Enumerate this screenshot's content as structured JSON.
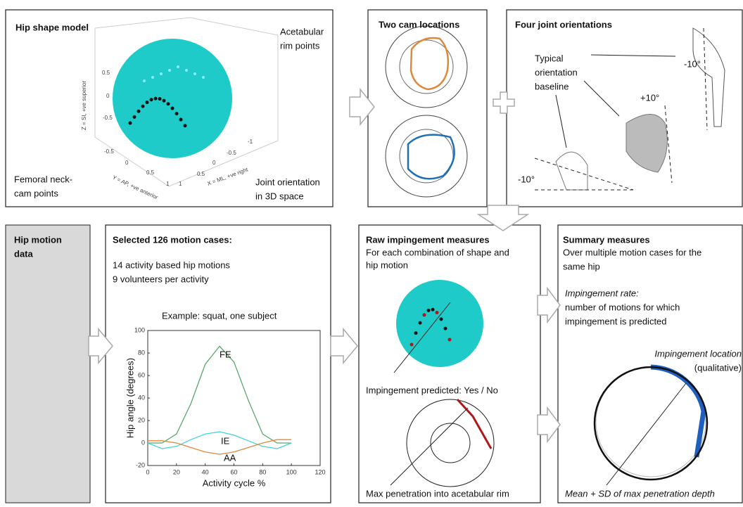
{
  "shape_panel": {
    "title": "Hip shape model",
    "rim_label": [
      "Acetabular",
      "rim points"
    ],
    "cam_label": [
      "Femoral neck-",
      "cam points"
    ],
    "orientation_label": [
      "Joint orientation",
      "in 3D space"
    ],
    "axis_labels": [
      "Z = SI, +ve superior",
      "Y = AP, +ve anterior",
      "X = ML, +ve right"
    ],
    "z_ticks": [
      "0.5",
      "0",
      "-0.5"
    ],
    "y_ticks": [
      "-0.5",
      "0",
      "0.5",
      "1"
    ],
    "x_ticks": [
      "1",
      "0.5",
      "0",
      "-0.5",
      "-1"
    ]
  },
  "cam_panel": {
    "title": "Two cam locations"
  },
  "orientation_panel": {
    "title": "Four joint orientations",
    "baseline_label": [
      "Typical",
      "orientation",
      "baseline"
    ],
    "angles": [
      "-10°",
      "+10°",
      "-10°"
    ]
  },
  "motion_panel": {
    "title": [
      "Hip motion",
      "data"
    ]
  },
  "cases_panel": {
    "title": "Selected 126 motion cases:",
    "lines": [
      "14 activity based hip motions",
      "9 volunteers per activity"
    ],
    "example": "Example: squat, one subject"
  },
  "plot": {
    "type": "line",
    "xlabel": "Activity cycle %",
    "ylabel": "Hip angle (degrees)",
    "x": [
      0,
      10,
      20,
      30,
      40,
      50,
      60,
      70,
      80,
      90,
      100
    ],
    "series": [
      {
        "name": "FE",
        "color": "#5aa86c",
        "values": [
          0,
          0,
          8,
          35,
          70,
          86,
          72,
          38,
          8,
          0,
          0
        ]
      },
      {
        "name": "IE",
        "color": "#3fd3d8",
        "values": [
          0,
          -5,
          -3,
          3,
          8,
          10,
          7,
          2,
          -3,
          -5,
          0
        ]
      },
      {
        "name": "AA",
        "color": "#e0883a",
        "values": [
          2,
          2,
          0,
          -4,
          -8,
          -10,
          -8,
          -4,
          0,
          3,
          3
        ]
      }
    ],
    "xlim": [
      0,
      120
    ],
    "ylim": [
      -20,
      100
    ],
    "xticks": [
      0,
      20,
      40,
      60,
      80,
      100,
      120
    ],
    "yticks": [
      -20,
      0,
      20,
      40,
      60,
      80,
      100
    ]
  },
  "raw_panel": {
    "title": "Raw impingement measures",
    "subtitle": [
      "For each combination of shape and",
      "hip motion"
    ],
    "prediction": "Impingement predicted: Yes / No",
    "penetration": "Max penetration into acetabular rim"
  },
  "summary_panel": {
    "title": "Summary measures",
    "subtitle": [
      "Over multiple motion cases for the",
      "same hip"
    ],
    "rate": "Impingement rate:",
    "rate_desc": [
      "number of motions for which",
      "impingement is predicted"
    ],
    "location": [
      "Impingement location",
      "(qualitative)"
    ],
    "depth": "Mean + SD of max penetration depth"
  }
}
